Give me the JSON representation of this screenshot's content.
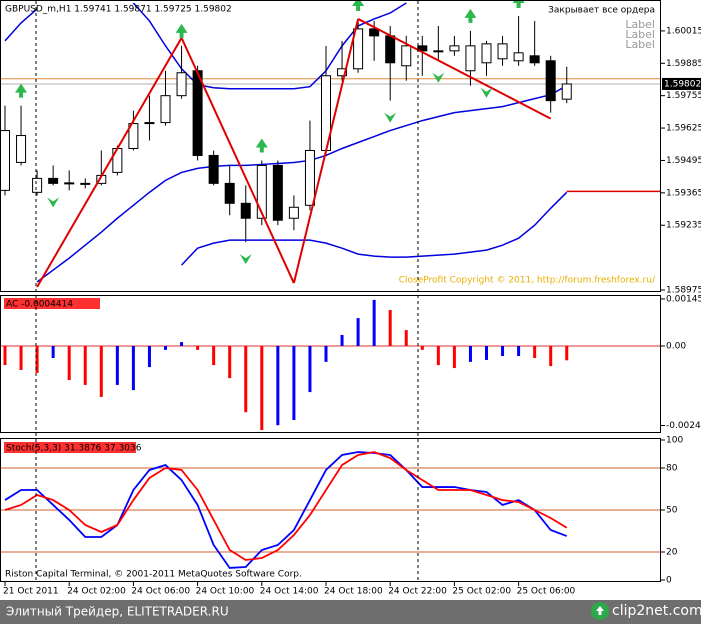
{
  "chart_data": [
    {
      "type": "candlestick",
      "title": "GBPUSD_m,H1  1.59741 1.59871 1.59725 1.59802",
      "categories": [
        "21 Oct 2011",
        null,
        null,
        null,
        "24 Oct 02:00",
        null,
        null,
        null,
        "24 Oct 06:00",
        null,
        null,
        null,
        "24 Oct 10:00",
        null,
        null,
        null,
        "24 Oct 14:00",
        null,
        null,
        null,
        "24 Oct 18:00",
        null,
        null,
        null,
        "24 Oct 22:00",
        null,
        null,
        null,
        "25 Oct 02:00",
        null,
        null,
        null,
        "25 Oct 06:00",
        null,
        null,
        null
      ],
      "open": [
        1.59375,
        1.59487,
        1.59367,
        1.59423,
        1.59403,
        1.59403,
        1.59403,
        1.59447,
        1.59543,
        1.59647,
        1.59647,
        1.59755,
        1.59855,
        1.59515,
        1.59403,
        1.59323,
        1.59263,
        1.59475,
        1.59263,
        1.59315,
        1.59535,
        1.59835,
        1.59863,
        1.60023,
        1.59995,
        1.59875,
        1.59955,
        1.59935,
        1.59935,
        1.59855,
        1.59887,
        1.59903,
        1.59895,
        1.59915,
        1.59895,
        1.59741
      ],
      "high": [
        1.59715,
        1.59715,
        1.59455,
        1.59475,
        1.59455,
        1.59423,
        1.59535,
        1.59555,
        1.59695,
        1.59755,
        1.59855,
        1.59955,
        1.59875,
        1.59535,
        1.59475,
        1.59395,
        1.59495,
        1.59495,
        1.59355,
        1.59655,
        1.59955,
        1.59975,
        1.60063,
        1.60055,
        1.60035,
        1.59995,
        1.59995,
        1.60035,
        1.59995,
        1.60015,
        1.59975,
        1.59995,
        1.60075,
        1.60055,
        1.59915,
        1.59871
      ],
      "low": [
        1.59355,
        1.59475,
        1.59355,
        1.59395,
        1.59375,
        1.59383,
        1.59395,
        1.59435,
        1.59535,
        1.59575,
        1.59635,
        1.59743,
        1.59495,
        1.59395,
        1.59275,
        1.59167,
        1.59235,
        1.59235,
        1.59215,
        1.59295,
        1.59515,
        1.59815,
        1.59847,
        1.59895,
        1.59735,
        1.59815,
        1.59835,
        1.59895,
        1.59915,
        1.59795,
        1.59835,
        1.59875,
        1.59875,
        1.59875,
        1.59687,
        1.59725
      ],
      "close": [
        1.59615,
        1.59595,
        1.59423,
        1.59403,
        1.59405,
        1.59399,
        1.59435,
        1.59543,
        1.59643,
        1.59645,
        1.59755,
        1.59847,
        1.59515,
        1.59403,
        1.59323,
        1.59263,
        1.59475,
        1.59255,
        1.59307,
        1.59535,
        1.59835,
        1.59863,
        1.60023,
        1.59995,
        1.59887,
        1.59955,
        1.59935,
        1.59933,
        1.59955,
        1.59955,
        1.59963,
        1.59963,
        1.59927,
        1.59887,
        1.59735,
        1.59802
      ],
      "bands": [
        {
          "color": "#0000e0",
          "values": [
            1.59975,
            1.60047,
            1.60103,
            null,
            null,
            null,
            null,
            null,
            1.60127,
            1.60055,
            1.59955,
            1.59863,
            1.59799,
            1.59787,
            1.59783,
            1.59783,
            1.59783,
            1.59783,
            1.59783,
            1.59791,
            1.59855,
            1.59955,
            1.60035,
            1.60063,
            1.60087,
            1.60127,
            null,
            null,
            null,
            null,
            null,
            null,
            null,
            null,
            null,
            null
          ]
        },
        {
          "color": "#0000e0",
          "values": [
            null,
            null,
            1.59007,
            1.59055,
            1.59103,
            1.59155,
            1.59207,
            1.59263,
            1.59315,
            1.59367,
            1.59415,
            1.59447,
            1.59463,
            1.59471,
            1.59475,
            1.59475,
            1.59479,
            1.59483,
            1.59487,
            1.59495,
            1.59515,
            1.59543,
            1.59567,
            1.59591,
            1.59615,
            1.59635,
            1.59655,
            1.59671,
            1.59687,
            1.59695,
            1.59703,
            1.59711,
            1.59727,
            1.59743,
            1.59759,
            1.59795
          ]
        },
        {
          "color": "#0000e0",
          "values": [
            null,
            null,
            null,
            null,
            null,
            null,
            null,
            null,
            null,
            null,
            null,
            1.59075,
            1.59143,
            1.59163,
            1.59175,
            1.59175,
            1.59175,
            1.59175,
            1.59175,
            1.59175,
            1.59163,
            1.59143,
            1.59119,
            1.59111,
            1.59107,
            1.59107,
            1.59111,
            1.59115,
            1.59119,
            1.59127,
            1.59135,
            1.59155,
            1.59183,
            1.59235,
            1.59303,
            1.59367
          ]
        }
      ],
      "zigzag": {
        "color": "#e00000",
        "values": [
          null,
          null,
          1.58987,
          null,
          null,
          null,
          null,
          null,
          null,
          null,
          null,
          1.59987,
          null,
          null,
          null,
          null,
          null,
          null,
          1.59003,
          null,
          null,
          null,
          1.60063,
          null,
          null,
          null,
          null,
          null,
          null,
          null,
          null,
          null,
          null,
          null,
          1.59663,
          null
        ]
      },
      "fractals_up": [
        null,
        1.59715,
        null,
        null,
        null,
        null,
        null,
        null,
        null,
        null,
        null,
        1.59955,
        null,
        null,
        null,
        null,
        1.59495,
        null,
        null,
        null,
        null,
        null,
        1.60063,
        null,
        null,
        null,
        null,
        null,
        null,
        1.60015,
        null,
        null,
        1.60075,
        null,
        null,
        null
      ],
      "fractals_down": [
        null,
        null,
        null,
        1.59395,
        null,
        null,
        null,
        null,
        null,
        null,
        null,
        null,
        null,
        null,
        null,
        1.59167,
        null,
        null,
        null,
        null,
        null,
        null,
        null,
        null,
        1.59735,
        null,
        null,
        1.59895,
        null,
        null,
        1.59835,
        null,
        null,
        null,
        null,
        null
      ],
      "fractal_color": "#2db84d",
      "ask_line": {
        "value": 1.59823,
        "color": "#e08a3c"
      },
      "level": {
        "value": 1.59371,
        "color": "#e00000"
      },
      "annotations": [
        "Закрывает все ордера",
        "Label",
        "Label",
        "Label",
        "CloseProfit Copyright © 2011, http://forum.freshforex.ru/"
      ],
      "ylim": [
        1.58971,
        1.60135
      ],
      "yticks": [
        1.60015,
        1.59885,
        1.59755,
        1.59625,
        1.59495,
        1.59365,
        1.59235,
        1.58975
      ]
    },
    {
      "type": "histogram",
      "title": "AC -0.0004414",
      "values": [
        -0.00059,
        -0.00074,
        -0.00083,
        -0.00037,
        -0.00105,
        -0.0012,
        -0.00157,
        -0.0012,
        -0.00136,
        -0.00065,
        -0.00012,
        0.00012,
        -0.00012,
        -0.00059,
        -0.00099,
        -0.00204,
        -0.00259,
        -0.00244,
        -0.00228,
        -0.00142,
        -0.00049,
        0.00034,
        0.00086,
        0.00142,
        0.00111,
        0.00049,
        -0.00012,
        -0.00059,
        -0.00068,
        -0.00049,
        -0.00043,
        -0.00031,
        -0.00031,
        -0.00037,
        -0.00062,
        -0.0004414
      ],
      "colors": [
        "#ff0000",
        "#ff0000",
        "#ff0000",
        "#0000ff",
        "#ff0000",
        "#ff0000",
        "#ff0000",
        "#0000ff",
        "#0000ff",
        "#0000ff",
        "#0000ff",
        "#0000ff",
        "#ff0000",
        "#ff0000",
        "#ff0000",
        "#ff0000",
        "#ff0000",
        "#0000ff",
        "#0000ff",
        "#0000ff",
        "#0000ff",
        "#0000ff",
        "#0000ff",
        "#0000ff",
        "#ff0000",
        "#ff0000",
        "#ff0000",
        "#ff0000",
        "#ff0000",
        "#0000ff",
        "#0000ff",
        "#0000ff",
        "#0000ff",
        "#ff0000",
        "#ff0000",
        "#ff0000"
      ],
      "ylim": [
        -0.00265,
        0.00154
      ],
      "yticks": [
        0.00145,
        {
          "value": 0,
          "label": "0.00"
        },
        -0.00245
      ]
    },
    {
      "type": "line",
      "title": "Stoch(5,3,3) 31.3876 37.3036",
      "series": [
        {
          "color": "#0000ff",
          "values": [
            57.1,
            64.3,
            64.3,
            53.6,
            42.9,
            30.7,
            30.7,
            39.3,
            64.3,
            78.6,
            82.1,
            71.4,
            53.6,
            25,
            8.6,
            9.3,
            21.4,
            25,
            35.7,
            57.1,
            78.6,
            89.3,
            91.4,
            90.7,
            89.3,
            78.6,
            66.4,
            66.4,
            66.4,
            64.3,
            62.9,
            53.6,
            57.1,
            50,
            35.7,
            31.3876
          ]
        },
        {
          "color": "#ff0000",
          "values": [
            50,
            53.6,
            60.7,
            57.1,
            50,
            39.3,
            34.3,
            39.3,
            57.1,
            72.9,
            80,
            78.6,
            64.3,
            42.9,
            21.4,
            14.3,
            15.7,
            21.4,
            32.1,
            46.4,
            64.3,
            82.1,
            89.3,
            91.4,
            87.1,
            78.6,
            71.4,
            64.3,
            64.3,
            64.3,
            60.7,
            57.1,
            55.7,
            50,
            44.3,
            37.3036
          ]
        }
      ],
      "levels": [
        80,
        50,
        20
      ],
      "footer": "Riston Capital Terminal, © 2001-2011 MetaQuotes Software Corp.",
      "ylim": [
        0,
        100
      ],
      "yticks": [
        100,
        80,
        50,
        20,
        0
      ]
    }
  ],
  "watermark": "Элитный Трейдер, ELITETRADER.RU",
  "logo": "clip2net.com"
}
